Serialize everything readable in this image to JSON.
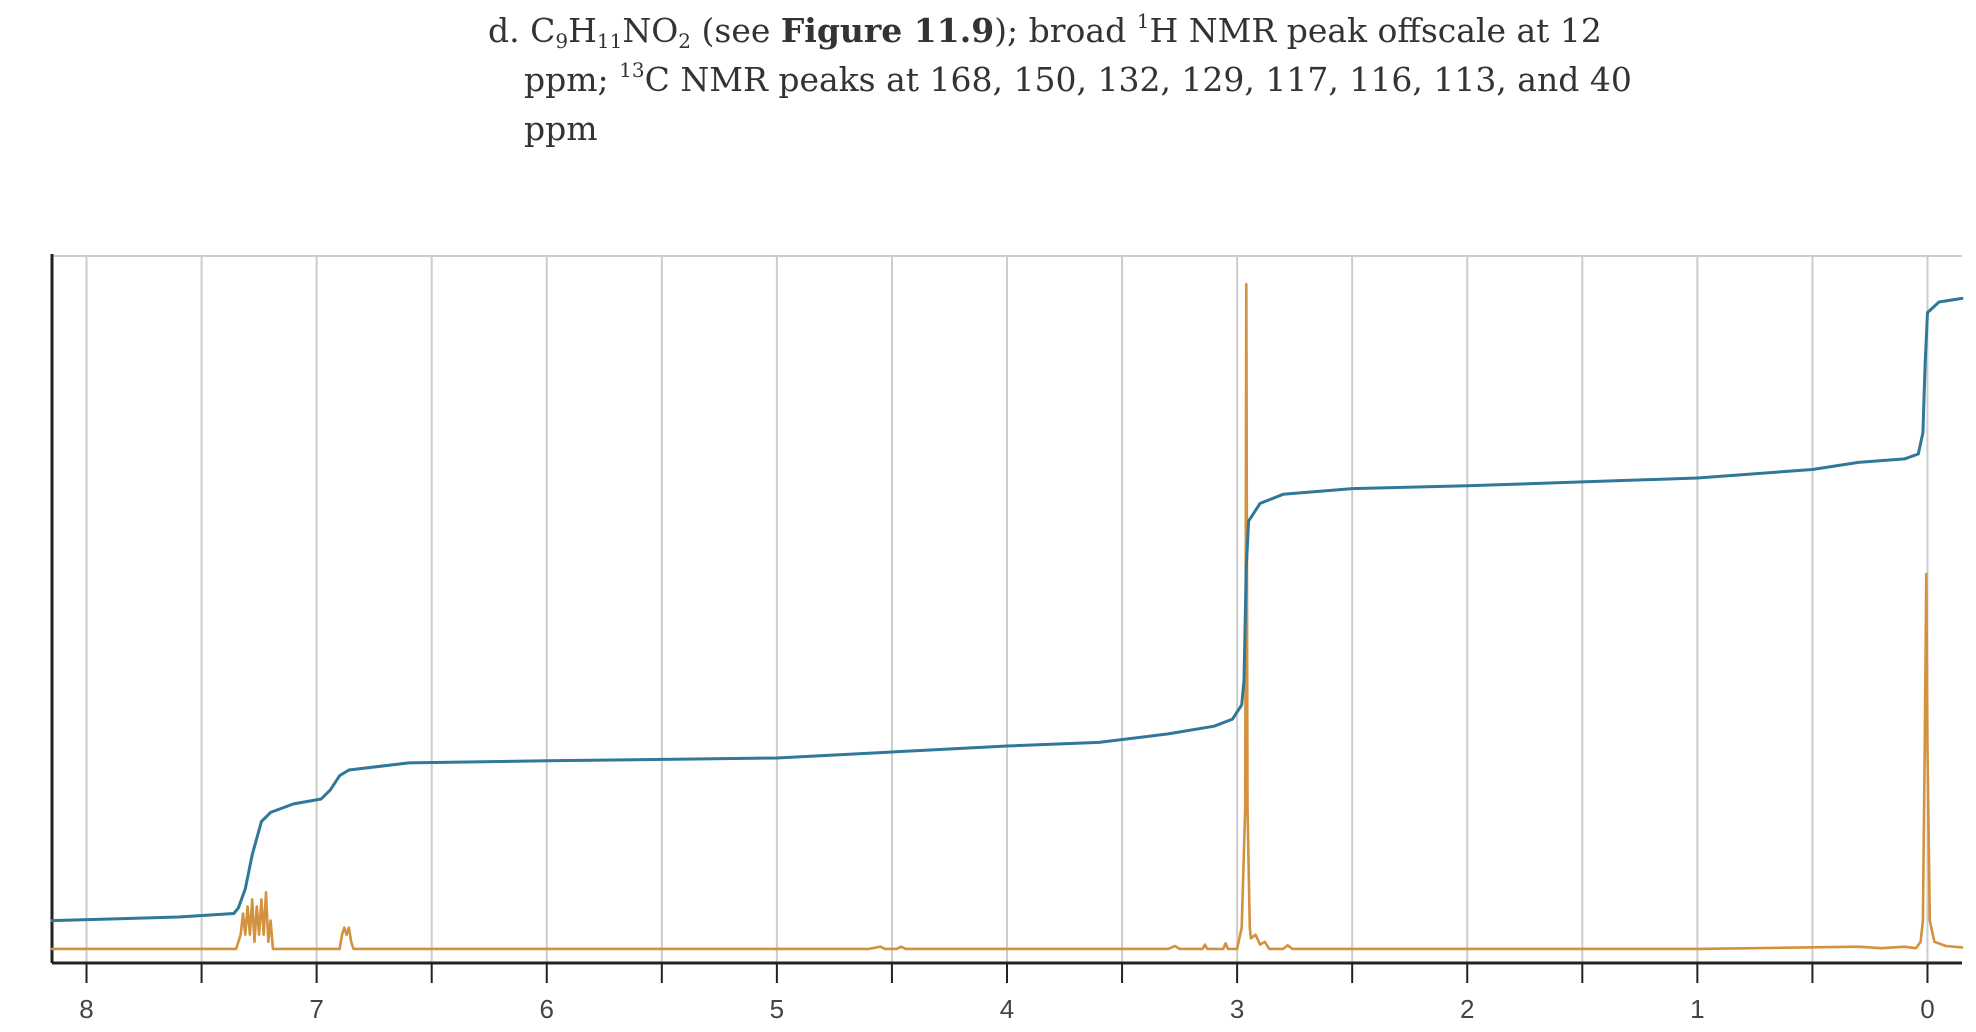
{
  "problem": {
    "label": "d.",
    "formula_c": "C",
    "formula_c_sub": "9",
    "formula_h": "H",
    "formula_h_sub": "11",
    "formula_no": "NO",
    "formula_no_sub": "2",
    "see_open": "(see ",
    "figure_ref": "Figure 11.9",
    "see_close": "); broad ",
    "h_sup": "1",
    "h_text": "H NMR peak offscale at 12",
    "line2_start": "ppm; ",
    "c_sup": "13",
    "c_text": "C NMR peaks at 168, 150, 132, 129, 117, 116, 113, and 40",
    "line3": "ppm"
  },
  "colors": {
    "spectrum": "#d4913e",
    "integral": "#2f7898",
    "grid": "#cccccc",
    "axis": "#222222"
  },
  "chart_data": {
    "type": "line",
    "title": "",
    "xlabel": "",
    "ylabel": "",
    "x_reversed": true,
    "xlim": [
      8.15,
      -0.15
    ],
    "ylim": [
      0,
      100
    ],
    "x_ticks": [
      8,
      7,
      6,
      5,
      4,
      3,
      2,
      1,
      0
    ],
    "x_tick_labels": [
      "8",
      "7",
      "6",
      "5",
      "4",
      "3",
      "2",
      "1",
      "0"
    ],
    "x_minor_ticks": [
      7.5,
      6.5,
      5.5,
      4.5,
      3.5,
      2.5,
      1.5,
      0.5
    ],
    "grid": true,
    "series": [
      {
        "role": "spectrum",
        "baseline": 2,
        "points": [
          [
            8.15,
            2
          ],
          [
            7.35,
            2
          ],
          [
            7.33,
            4
          ],
          [
            7.32,
            7
          ],
          [
            7.31,
            4
          ],
          [
            7.3,
            8
          ],
          [
            7.29,
            4
          ],
          [
            7.28,
            9
          ],
          [
            7.27,
            3
          ],
          [
            7.26,
            8
          ],
          [
            7.25,
            4
          ],
          [
            7.24,
            9
          ],
          [
            7.23,
            4
          ],
          [
            7.22,
            10
          ],
          [
            7.21,
            3
          ],
          [
            7.2,
            6
          ],
          [
            7.19,
            2
          ],
          [
            7.0,
            2
          ],
          [
            6.9,
            2
          ],
          [
            6.89,
            4
          ],
          [
            6.88,
            5
          ],
          [
            6.87,
            4
          ],
          [
            6.86,
            5
          ],
          [
            6.85,
            3
          ],
          [
            6.84,
            2
          ],
          [
            4.6,
            2
          ],
          [
            4.55,
            2.3
          ],
          [
            4.53,
            2
          ],
          [
            4.48,
            2
          ],
          [
            4.46,
            2.3
          ],
          [
            4.44,
            2
          ],
          [
            3.3,
            2
          ],
          [
            3.27,
            2.4
          ],
          [
            3.25,
            2
          ],
          [
            3.15,
            2
          ],
          [
            3.14,
            2.6
          ],
          [
            3.13,
            2
          ],
          [
            3.06,
            2
          ],
          [
            3.05,
            2.8
          ],
          [
            3.04,
            2
          ],
          [
            3.0,
            2
          ],
          [
            2.98,
            5
          ],
          [
            2.965,
            22
          ],
          [
            2.96,
            96
          ],
          [
            2.955,
            22
          ],
          [
            2.945,
            5
          ],
          [
            2.94,
            3.5
          ],
          [
            2.92,
            4
          ],
          [
            2.9,
            2.6
          ],
          [
            2.88,
            3
          ],
          [
            2.86,
            2
          ],
          [
            2.8,
            2
          ],
          [
            2.78,
            2.5
          ],
          [
            2.76,
            2
          ],
          [
            2.0,
            2
          ],
          [
            1.0,
            2
          ],
          [
            0.3,
            2.3
          ],
          [
            0.2,
            2.1
          ],
          [
            0.1,
            2.3
          ],
          [
            0.05,
            2.1
          ],
          [
            0.03,
            3
          ],
          [
            0.02,
            6
          ],
          [
            0.012,
            30
          ],
          [
            0.005,
            55
          ],
          [
            0.0,
            30
          ],
          [
            -0.01,
            6
          ],
          [
            -0.03,
            3
          ],
          [
            -0.08,
            2.4
          ],
          [
            -0.15,
            2.2
          ]
        ]
      },
      {
        "role": "integral",
        "points": [
          [
            8.15,
            6
          ],
          [
            7.6,
            6.5
          ],
          [
            7.36,
            7
          ],
          [
            7.34,
            7.8
          ],
          [
            7.31,
            10.5
          ],
          [
            7.28,
            15.3
          ],
          [
            7.24,
            20
          ],
          [
            7.2,
            21.3
          ],
          [
            7.1,
            22.5
          ],
          [
            6.98,
            23.2
          ],
          [
            6.94,
            24.5
          ],
          [
            6.9,
            26.5
          ],
          [
            6.86,
            27.3
          ],
          [
            6.6,
            28.3
          ],
          [
            6.0,
            28.6
          ],
          [
            5.0,
            29
          ],
          [
            4.0,
            30.7
          ],
          [
            3.6,
            31.2
          ],
          [
            3.3,
            32.4
          ],
          [
            3.1,
            33.5
          ],
          [
            3.02,
            34.5
          ],
          [
            2.98,
            36.5
          ],
          [
            2.97,
            40
          ],
          [
            2.96,
            56
          ],
          [
            2.95,
            62.5
          ],
          [
            2.9,
            65
          ],
          [
            2.8,
            66.3
          ],
          [
            2.5,
            67.1
          ],
          [
            2.0,
            67.5
          ],
          [
            1.0,
            68.6
          ],
          [
            0.5,
            69.8
          ],
          [
            0.3,
            70.8
          ],
          [
            0.1,
            71.3
          ],
          [
            0.04,
            72
          ],
          [
            0.02,
            75
          ],
          [
            0.01,
            85
          ],
          [
            0.0,
            92
          ],
          [
            -0.05,
            93.5
          ],
          [
            -0.15,
            94
          ]
        ]
      }
    ]
  }
}
